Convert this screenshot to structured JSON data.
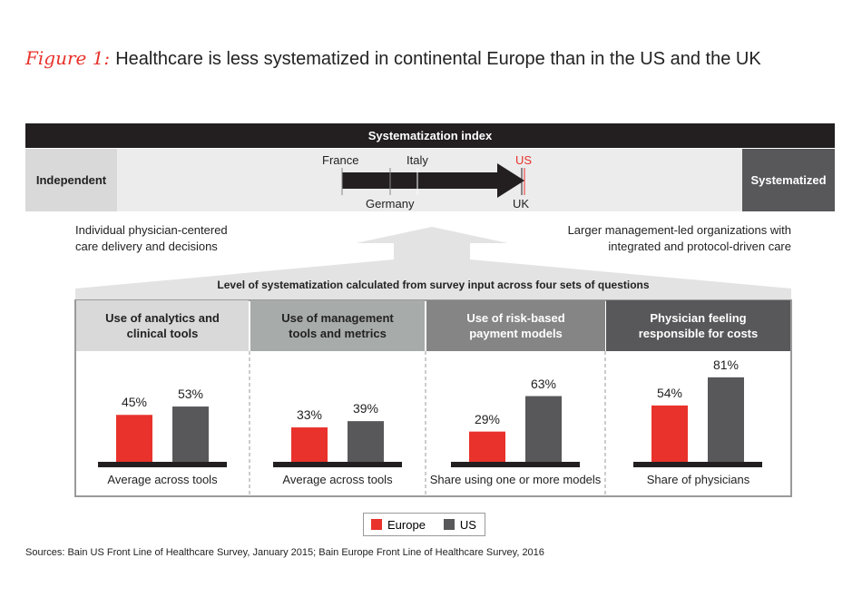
{
  "title": {
    "figure_label": "Figure 1:",
    "text": "Healthcare is less systematized in continental Europe than in the US and the UK"
  },
  "index": {
    "header": "Systematization index",
    "left_label": "Independent",
    "right_label": "Systematized",
    "countries": {
      "france": "France",
      "germany": "Germany",
      "italy": "Italy",
      "us": "US",
      "uk": "UK"
    },
    "left_desc": [
      "Individual physician-centered",
      "care delivery and decisions"
    ],
    "right_desc": [
      "Larger management-led organizations with",
      "integrated and protocol-driven care"
    ]
  },
  "roof_label": "Level of systematization calculated from survey input across four sets of questions",
  "colors": {
    "europe": "#e8322b",
    "us": "#58585a",
    "us_label": "#e8322b"
  },
  "chart_data": {
    "type": "bar",
    "ylim": [
      0,
      100
    ],
    "categories": [
      "Use of analytics and clinical tools",
      "Use of management tools and metrics",
      "Use of risk-based payment models",
      "Physician feeling responsible for costs"
    ],
    "category_lines": [
      [
        "Use of analytics and",
        "clinical tools"
      ],
      [
        "Use of management",
        "tools and metrics"
      ],
      [
        "Use of risk-based",
        "payment models"
      ],
      [
        "Physician feeling",
        "responsible for costs"
      ]
    ],
    "sublabels": [
      "Average across tools",
      "Average across tools",
      "Share using one or more models",
      "Share of physicians"
    ],
    "series": [
      {
        "name": "Europe",
        "values": [
          45,
          33,
          29,
          54
        ],
        "labels": [
          "45%",
          "33%",
          "29%",
          "54%"
        ]
      },
      {
        "name": "US",
        "values": [
          53,
          39,
          63,
          81
        ],
        "labels": [
          "53%",
          "39%",
          "63%",
          "81%"
        ]
      }
    ],
    "legend": "bottom-center"
  },
  "source": "Sources: Bain US Front Line of Healthcare Survey, January 2015; Bain Europe Front Line of Healthcare Survey, 2016"
}
